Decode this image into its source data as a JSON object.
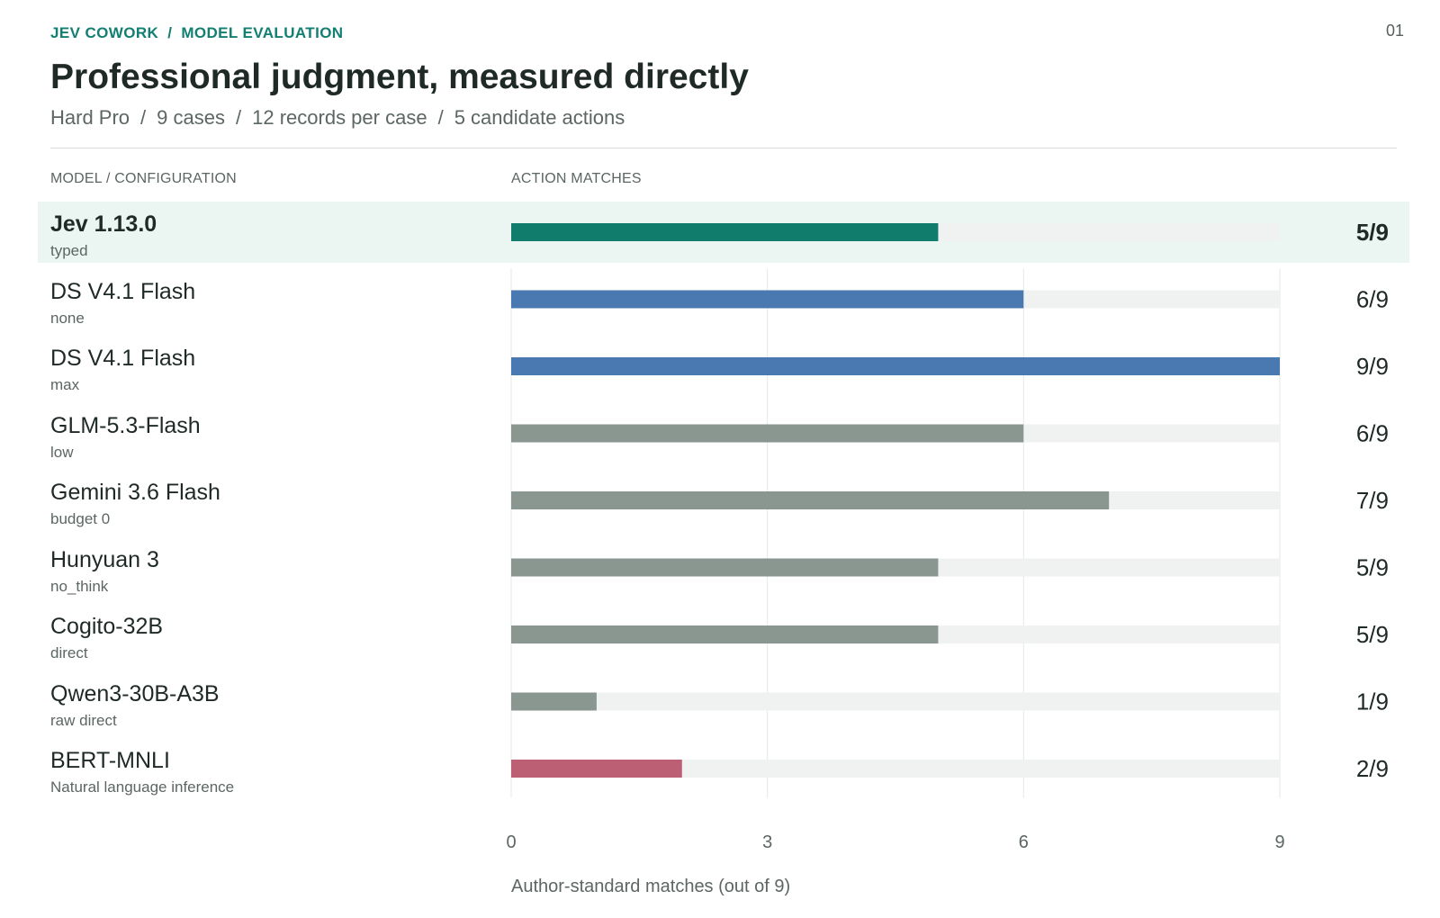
{
  "header": {
    "breadcrumb": [
      "JEV COWORK",
      "MODEL EVALUATION"
    ],
    "page_number": "01",
    "title": "Professional judgment, measured directly",
    "subtitle_parts": [
      "Hard Pro",
      "9 cases",
      "12 records per case",
      "5 candidate actions"
    ]
  },
  "columns": {
    "model": "MODEL / CONFIGURATION",
    "matches": "ACTION MATCHES"
  },
  "colors": {
    "featured": "#0f7c6c",
    "ds": "#4a78b0",
    "other": "#8a9690",
    "baseline": "#bd5f74",
    "track": "#f0f2f1",
    "highlight": "#ebf5f2"
  },
  "chart_data": {
    "type": "bar",
    "orientation": "horizontal",
    "xlabel": "Author-standard matches (out of 9)",
    "xlim": [
      0,
      9
    ],
    "xticks": [
      0,
      3,
      6,
      9
    ],
    "grid": true,
    "rows": [
      {
        "name": "Jev 1.13.0",
        "config": "typed",
        "value": 5,
        "label": "5/9",
        "group": "featured"
      },
      {
        "name": "DS V4.1 Flash",
        "config": "none",
        "value": 6,
        "label": "6/9",
        "group": "ds"
      },
      {
        "name": "DS V4.1 Flash",
        "config": "max",
        "value": 9,
        "label": "9/9",
        "group": "ds"
      },
      {
        "name": "GLM-5.3-Flash",
        "config": "low",
        "value": 6,
        "label": "6/9",
        "group": "other"
      },
      {
        "name": "Gemini 3.6 Flash",
        "config": "budget 0",
        "value": 7,
        "label": "7/9",
        "group": "other"
      },
      {
        "name": "Hunyuan 3",
        "config": "no_think",
        "value": 5,
        "label": "5/9",
        "group": "other"
      },
      {
        "name": "Cogito-32B",
        "config": "direct",
        "value": 5,
        "label": "5/9",
        "group": "other"
      },
      {
        "name": "Qwen3-30B-A3B",
        "config": "raw direct",
        "value": 1,
        "label": "1/9",
        "group": "other"
      },
      {
        "name": "BERT-MNLI",
        "config": "Natural language inference",
        "value": 2,
        "label": "2/9",
        "group": "baseline"
      }
    ]
  }
}
